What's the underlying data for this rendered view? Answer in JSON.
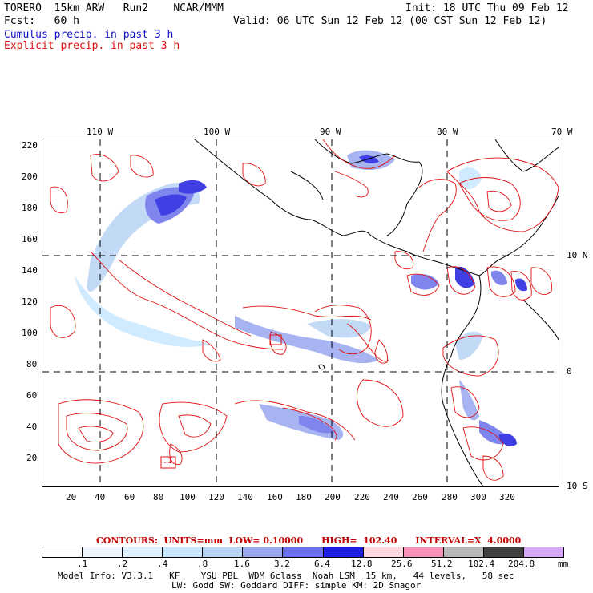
{
  "header": {
    "model": "TORERO  15km ARW   Run2    NCAR/MMM",
    "init": "Init: 18 UTC Thu 09 Feb 12",
    "fcst": "Fcst:   60 h",
    "valid": "Valid: 06 UTC Sun 12 Feb 12 (00 CST Sun 12 Feb 12)",
    "line_cumulus": "Cumulus precip. in past 3 h",
    "line_explicit": "Explicit precip. in past 3 h"
  },
  "map": {
    "lon_labels": [
      "110 W",
      "100 W",
      "90 W",
      "80 W",
      "70 W"
    ],
    "lat_labels": [
      "10 N",
      "0",
      "10 S"
    ],
    "y_ticks": [
      "220",
      "200",
      "180",
      "160",
      "140",
      "120",
      "100",
      "80",
      "60",
      "40",
      "20"
    ],
    "x_ticks": [
      "20",
      "40",
      "60",
      "80",
      "100",
      "120",
      "140",
      "160",
      "180",
      "200",
      "220",
      "240",
      "260",
      "280",
      "300",
      "320"
    ],
    "box_label": ".1"
  },
  "contours": {
    "text": "CONTOURS:  UNITS=mm  LOW= 0.10000      HIGH=  102.40      INTERVAL=X  4.0000"
  },
  "colorbar": {
    "labels": [
      ".1",
      ".2",
      ".4",
      ".8",
      "1.6",
      "3.2",
      "6.4",
      "12.8",
      "25.6",
      "51.2",
      "102.4",
      "204.8"
    ],
    "unit": "mm",
    "colors": [
      "#ffffff",
      "#eef6ff",
      "#dff1ff",
      "#c8e8ff",
      "#b8d4f4",
      "#9aa8f0",
      "#6a70ec",
      "#1e1ee0",
      "#ffd8e0",
      "#f890b8",
      "#b8b8b8",
      "#404040",
      "#d8a8f8"
    ]
  },
  "footer": {
    "line1": "Model Info: V3.3.1   KF    YSU PBL  WDM 6class  Noah LSM  15 km,   44 levels,   58 sec",
    "line2": "LW: Godd SW: Goddard DIFF: simple KM: 2D Smagor"
  }
}
